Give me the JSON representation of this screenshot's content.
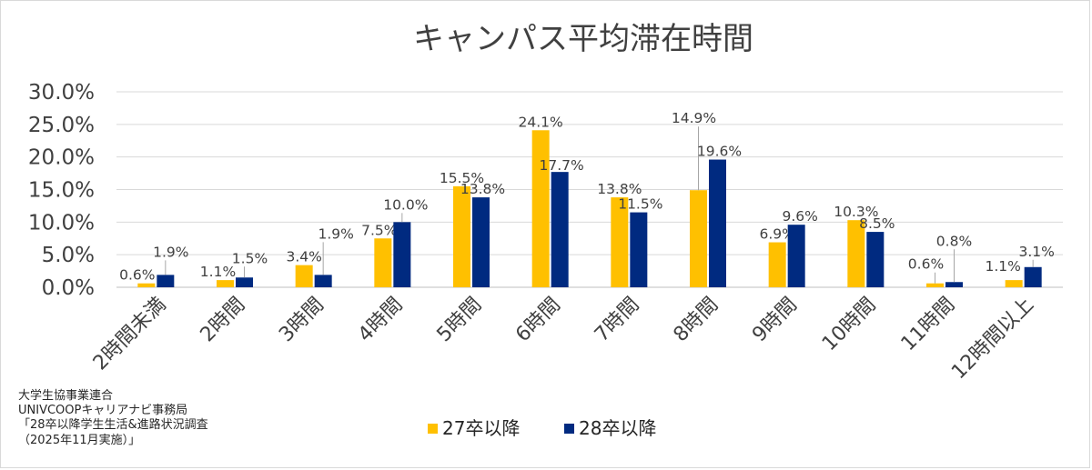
{
  "chart_data": {
    "type": "bar",
    "title": "キャンパス平均滞在時間",
    "categories": [
      "2時間未満",
      "2時間",
      "3時間",
      "4時間",
      "5時間",
      "6時間",
      "7時間",
      "8時間",
      "9時間",
      "10時間",
      "11時間",
      "12時間以上"
    ],
    "series": [
      {
        "name": "27卒以降",
        "color": "#FFC000",
        "values": [
          0.6,
          1.1,
          3.4,
          7.5,
          15.5,
          24.1,
          13.8,
          14.9,
          6.9,
          10.3,
          0.6,
          1.1
        ],
        "labels": [
          "0.6%",
          "1.1%",
          "3.4%",
          "7.5%",
          "15.5%",
          "24.1%",
          "13.8%",
          "14.9%",
          "6.9%",
          "10.3%",
          "0.6%",
          "1.1%"
        ]
      },
      {
        "name": "28卒以降",
        "color": "#002A80",
        "values": [
          1.9,
          1.5,
          1.9,
          10.0,
          13.8,
          17.7,
          11.5,
          19.6,
          9.6,
          8.5,
          0.8,
          3.1
        ],
        "labels": [
          "1.9%",
          "1.5%",
          "1.9%",
          "10.0%",
          "13.8%",
          "17.7%",
          "11.5%",
          "19.6%",
          "9.6%",
          "8.5%",
          "0.8%",
          "3.1%"
        ]
      }
    ],
    "ylim": [
      0,
      30
    ],
    "yticks": [
      "0.0%",
      "5.0%",
      "10.0%",
      "15.0%",
      "20.0%",
      "25.0%",
      "30.0%"
    ],
    "xlabel": "",
    "ylabel": "",
    "grid": true,
    "legend_position": "bottom"
  },
  "source": {
    "line1": "大学生協事業連合",
    "line2": "UNIVCOOPキャリアナビ事務局",
    "line3": "「28卒以降学生生活&進路状況調査",
    "line4": "（2025年11月実施）」"
  }
}
